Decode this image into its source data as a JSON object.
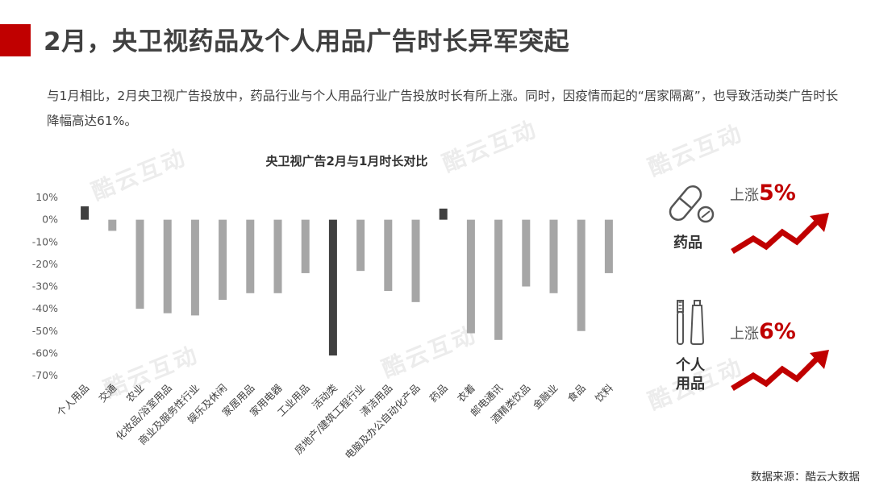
{
  "page": {
    "title": "2月，央卫视药品及个人用品广告时长异军突起",
    "intro": "与1月相比，2月央卫视广告投放中，药品行业与个人用品行业广告投放时长有所上涨。同时，因疫情而起的“居家隔离”，也导致活动类广告时长降幅高达61%。",
    "source": "数据来源：酷云大数据",
    "watermark": "酷云互动",
    "accent_color": "#c00000"
  },
  "side": {
    "drug_label": "药品",
    "drug_rise_prefix": "上涨",
    "drug_rise_value": "5%",
    "personal_label_1": "个人",
    "personal_label_2": "用品",
    "personal_rise_prefix": "上涨",
    "personal_rise_value": "6%",
    "icon_drug": "capsule-pill-icon",
    "icon_personal": "toothbrush-toothpaste-icon",
    "icon_trend": "rising-arrow-icon"
  },
  "chart_data": {
    "type": "bar",
    "title": "央卫视广告2月与1月时长对比",
    "categories": [
      "个人用品",
      "交通",
      "农业",
      "化妆品/浴室用品",
      "商业及服务性行业",
      "娱乐及休闲",
      "家居用品",
      "家用电器",
      "工业用品",
      "活动类",
      "房地产/建筑工程行业",
      "清洁用品",
      "电脑及办公自动化产品",
      "药品",
      "衣着",
      "邮电通讯",
      "酒精类饮品",
      "金融业",
      "食品",
      "饮料"
    ],
    "values": [
      6,
      -5,
      -40,
      -42,
      -43,
      -36,
      -33,
      -33,
      -24,
      -61,
      -23,
      -32,
      -37,
      5,
      -51,
      -54,
      -30,
      -33,
      -50,
      -24
    ],
    "ylim": [
      -70,
      10
    ],
    "yticks": [
      "10%",
      "0%",
      "-10%",
      "-20%",
      "-30%",
      "-40%",
      "-50%",
      "-60%",
      "-70%"
    ],
    "grid": false,
    "colors": {
      "default": "#a6a6a6",
      "highlight": "#404040"
    },
    "highlight_categories": [
      "个人用品",
      "药品",
      "活动类"
    ]
  }
}
